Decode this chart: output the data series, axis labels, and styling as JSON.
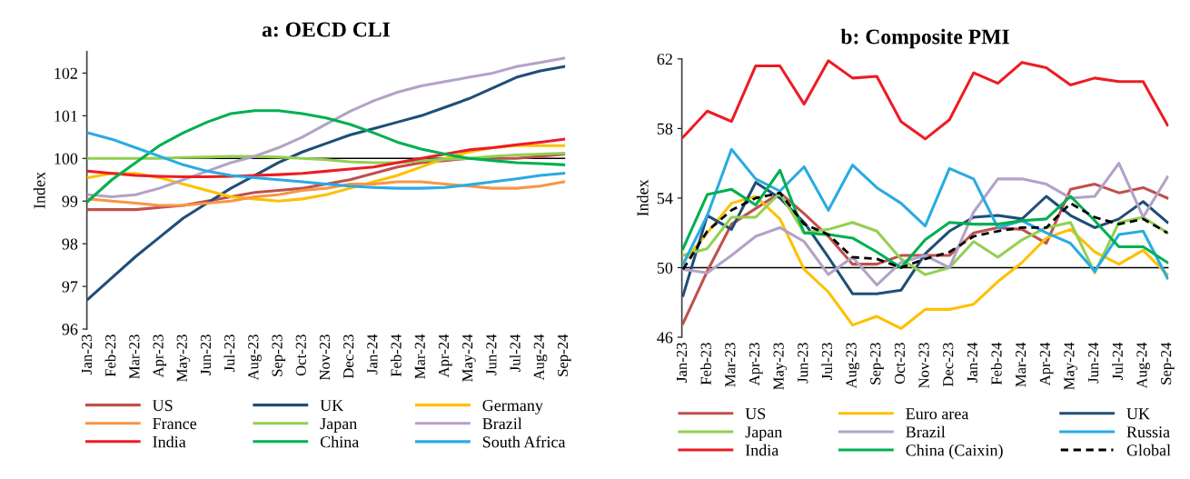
{
  "chart_data": [
    {
      "type": "line",
      "title": "a: OECD CLI",
      "ylabel": "Index",
      "categories": [
        "Jan-23",
        "Feb-23",
        "Mar-23",
        "Apr-23",
        "May-23",
        "Jun-23",
        "Jul-23",
        "Aug-23",
        "Sep-23",
        "Oct-23",
        "Nov-23",
        "Dec-23",
        "Jan-24",
        "Feb-24",
        "Mar-24",
        "Apr-24",
        "May-24",
        "Jun-24",
        "Jul-24",
        "Aug-24",
        "Sep-24"
      ],
      "ylim": [
        96,
        102.5
      ],
      "yticks": [
        96,
        97,
        98,
        99,
        100,
        101,
        102
      ],
      "grid": false,
      "legend": "bottom",
      "ref_lines": [
        {
          "axis": "y",
          "value": 100,
          "color": "#000000"
        }
      ],
      "series": [
        {
          "name": "US",
          "color": "#c0504d",
          "values": [
            98.8,
            98.8,
            98.8,
            98.85,
            98.9,
            99.0,
            99.1,
            99.2,
            99.25,
            99.3,
            99.4,
            99.5,
            99.65,
            99.8,
            99.9,
            99.95,
            100.0,
            100.0,
            100.0,
            100.05,
            100.1
          ]
        },
        {
          "name": "UK",
          "color": "#1f4e79",
          "values": [
            96.7,
            97.2,
            97.7,
            98.15,
            98.6,
            98.95,
            99.3,
            99.6,
            99.9,
            100.15,
            100.35,
            100.55,
            100.7,
            100.85,
            101.0,
            101.2,
            101.4,
            101.65,
            101.9,
            102.05,
            102.15
          ]
        },
        {
          "name": "Germany",
          "color": "#ffc000",
          "values": [
            99.55,
            99.65,
            99.65,
            99.55,
            99.4,
            99.25,
            99.1,
            99.05,
            99.0,
            99.05,
            99.15,
            99.3,
            99.45,
            99.6,
            99.8,
            100.0,
            100.15,
            100.25,
            100.3,
            100.3,
            100.3
          ]
        },
        {
          "name": "France",
          "color": "#f79646",
          "values": [
            99.05,
            99.0,
            98.95,
            98.9,
            98.9,
            98.95,
            99.0,
            99.1,
            99.15,
            99.25,
            99.3,
            99.4,
            99.4,
            99.45,
            99.45,
            99.4,
            99.35,
            99.3,
            99.3,
            99.35,
            99.45
          ]
        },
        {
          "name": "Japan",
          "color": "#92d050",
          "values": [
            100.0,
            100.0,
            100.0,
            100.0,
            100.02,
            100.03,
            100.05,
            100.05,
            100.03,
            100.0,
            99.97,
            99.92,
            99.9,
            99.9,
            99.95,
            99.98,
            100.0,
            100.05,
            100.08,
            100.1,
            100.12
          ]
        },
        {
          "name": "Brazil",
          "color": "#b3a2c7",
          "values": [
            99.15,
            99.1,
            99.15,
            99.3,
            99.5,
            99.7,
            99.9,
            100.05,
            100.25,
            100.5,
            100.8,
            101.1,
            101.35,
            101.55,
            101.7,
            101.8,
            101.9,
            102.0,
            102.15,
            102.25,
            102.35
          ]
        },
        {
          "name": "India",
          "color": "#ed1c24",
          "values": [
            99.7,
            99.65,
            99.6,
            99.58,
            99.57,
            99.57,
            99.58,
            99.6,
            99.62,
            99.65,
            99.7,
            99.75,
            99.8,
            99.9,
            100.0,
            100.1,
            100.2,
            100.25,
            100.32,
            100.38,
            100.45
          ]
        },
        {
          "name": "China",
          "color": "#00b050",
          "values": [
            99.0,
            99.5,
            99.9,
            100.3,
            100.6,
            100.85,
            101.05,
            101.12,
            101.12,
            101.05,
            100.95,
            100.8,
            100.6,
            100.38,
            100.22,
            100.1,
            100.0,
            99.95,
            99.9,
            99.88,
            99.85
          ]
        },
        {
          "name": "South Africa",
          "color": "#29abe2",
          "values": [
            100.6,
            100.45,
            100.25,
            100.05,
            99.85,
            99.7,
            99.6,
            99.55,
            99.5,
            99.45,
            99.4,
            99.35,
            99.32,
            99.3,
            99.3,
            99.32,
            99.38,
            99.45,
            99.52,
            99.6,
            99.65
          ]
        }
      ]
    },
    {
      "type": "line",
      "title": "b: Composite PMI",
      "ylabel": "Index",
      "categories": [
        "Jan-23",
        "Feb-23",
        "Mar-23",
        "Apr-23",
        "May-23",
        "Jun-23",
        "Jul-23",
        "Aug-23",
        "Sep-23",
        "Oct-23",
        "Nov-23",
        "Dec-23",
        "Jan-24",
        "Feb-24",
        "Mar-24",
        "Apr-24",
        "May-24",
        "Jun-24",
        "Jul-24",
        "Aug-24",
        "Sep-24"
      ],
      "ylim": [
        46,
        62
      ],
      "yticks": [
        46,
        50,
        54,
        58,
        62
      ],
      "grid": false,
      "legend": "bottom",
      "ref_lines": [
        {
          "axis": "y",
          "value": 50,
          "color": "#000000"
        }
      ],
      "series": [
        {
          "name": "US",
          "color": "#c0504d",
          "values": [
            46.8,
            49.8,
            52.5,
            53.4,
            54.3,
            53.1,
            51.8,
            50.2,
            50.2,
            50.7,
            50.7,
            50.7,
            52.0,
            52.3,
            52.2,
            51.4,
            54.5,
            54.8,
            54.3,
            54.6,
            54.0
          ]
        },
        {
          "name": "Euro area",
          "color": "#ffc000",
          "values": [
            50.3,
            52.0,
            53.7,
            54.1,
            52.8,
            49.9,
            48.6,
            46.7,
            47.2,
            46.5,
            47.6,
            47.6,
            47.9,
            49.2,
            50.3,
            51.7,
            52.2,
            50.9,
            50.2,
            51.0,
            49.6
          ]
        },
        {
          "name": "UK",
          "color": "#1f4e79",
          "values": [
            48.4,
            53.0,
            52.2,
            54.9,
            54.0,
            52.6,
            50.6,
            48.5,
            48.5,
            48.7,
            50.8,
            52.1,
            52.9,
            53.0,
            52.8,
            54.1,
            53.0,
            52.3,
            52.8,
            53.8,
            52.6
          ]
        },
        {
          "name": "Japan",
          "color": "#92d050",
          "values": [
            50.7,
            51.1,
            52.9,
            52.9,
            54.3,
            52.0,
            52.2,
            52.6,
            52.1,
            50.5,
            49.6,
            50.0,
            51.5,
            50.6,
            51.6,
            52.3,
            52.6,
            49.7,
            52.6,
            52.9,
            52.0
          ]
        },
        {
          "name": "Brazil",
          "color": "#b3a2c7",
          "values": [
            49.9,
            49.7,
            50.7,
            51.8,
            52.3,
            51.5,
            49.6,
            50.6,
            49.0,
            50.3,
            50.7,
            50.0,
            53.2,
            55.1,
            55.1,
            54.8,
            54.0,
            54.1,
            56.0,
            52.9,
            55.2
          ]
        },
        {
          "name": "Russia",
          "color": "#29abe2",
          "values": [
            50.2,
            53.0,
            56.8,
            55.1,
            54.4,
            55.8,
            53.3,
            55.9,
            54.6,
            53.7,
            52.4,
            55.7,
            55.1,
            52.3,
            52.7,
            52.0,
            51.4,
            49.8,
            51.9,
            52.1,
            49.4
          ]
        },
        {
          "name": "India",
          "color": "#ed1c24",
          "values": [
            57.5,
            59.0,
            58.4,
            61.6,
            61.6,
            59.4,
            61.9,
            60.9,
            61.0,
            58.4,
            57.4,
            58.5,
            61.2,
            60.6,
            61.8,
            61.5,
            60.5,
            60.9,
            60.7,
            60.7,
            58.2
          ]
        },
        {
          "name": "China (Caixin)",
          "color": "#00b050",
          "values": [
            51.1,
            54.2,
            54.5,
            53.6,
            55.6,
            52.0,
            51.9,
            51.7,
            50.9,
            50.0,
            51.6,
            52.6,
            52.5,
            52.5,
            52.7,
            52.8,
            54.1,
            52.7,
            51.2,
            51.2,
            50.3
          ]
        },
        {
          "name": "Global",
          "color": "#000000",
          "line_style": "dashed",
          "values": [
            49.9,
            52.1,
            53.3,
            54.0,
            54.3,
            52.5,
            51.9,
            50.6,
            50.5,
            50.0,
            50.5,
            50.9,
            51.8,
            52.1,
            52.3,
            52.3,
            53.7,
            52.9,
            52.5,
            52.8,
            52.0
          ]
        }
      ]
    }
  ]
}
